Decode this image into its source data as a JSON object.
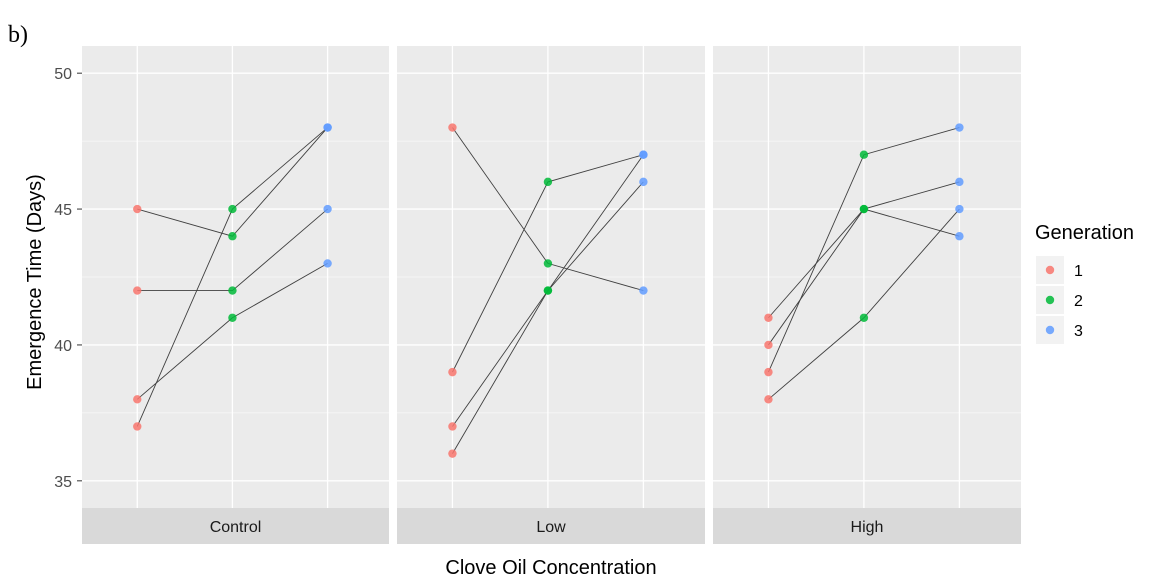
{
  "figure_label": "b)",
  "chart_data": {
    "type": "line",
    "xlabel": "Clove Oil Concentration",
    "ylabel": "Emergence Time (Days)",
    "ylim": [
      34,
      51
    ],
    "yticks": [
      35,
      40,
      45,
      50
    ],
    "generations": [
      1,
      2,
      3
    ],
    "panel_background": "#ebebeb",
    "strip_background": "#d9d9d9",
    "grid_color": "#ffffff",
    "line_color": "#404040",
    "legend": {
      "title": "Generation",
      "placement": "right",
      "items": [
        {
          "label": "1",
          "color": "#f8766d"
        },
        {
          "label": "2",
          "color": "#00ba38"
        },
        {
          "label": "3",
          "color": "#619cff"
        }
      ]
    },
    "panels": [
      {
        "label": "Control",
        "series": [
          {
            "values": [
              45,
              44,
              48
            ]
          },
          {
            "values": [
              42,
              42,
              45
            ]
          },
          {
            "values": [
              38,
              41,
              43
            ]
          },
          {
            "values": [
              37,
              45,
              48
            ]
          }
        ]
      },
      {
        "label": "Low",
        "series": [
          {
            "values": [
              48,
              43,
              42
            ]
          },
          {
            "values": [
              39,
              46,
              47
            ]
          },
          {
            "values": [
              37,
              42,
              47
            ]
          },
          {
            "values": [
              36,
              42,
              46
            ]
          }
        ]
      },
      {
        "label": "High",
        "series": [
          {
            "values": [
              41,
              45,
              44
            ]
          },
          {
            "values": [
              40,
              45,
              46
            ]
          },
          {
            "values": [
              39,
              47,
              48
            ]
          },
          {
            "values": [
              38,
              41,
              45
            ]
          }
        ]
      }
    ]
  }
}
